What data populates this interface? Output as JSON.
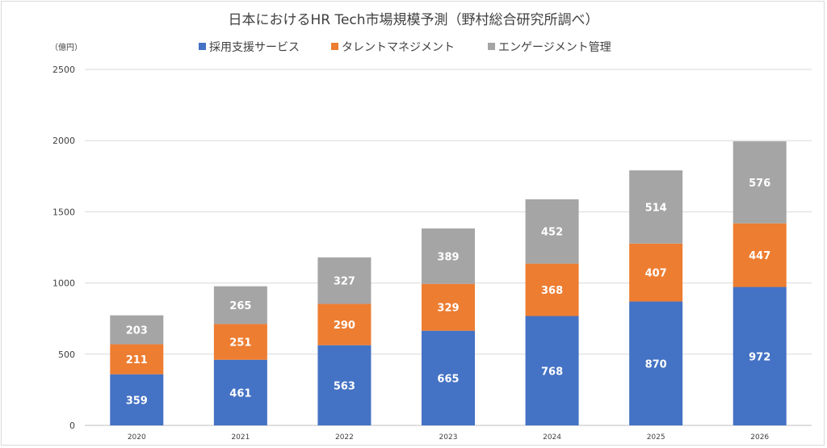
{
  "chart_data": {
    "type": "bar",
    "stacked": true,
    "title": "日本におけるHR Tech市場規模予測（野村総合研究所調べ）",
    "unit_label": "（億円）",
    "categories": [
      "2020",
      "2021",
      "2022",
      "2023",
      "2024",
      "2025",
      "2026"
    ],
    "series": [
      {
        "name": "採用支援サービス",
        "color": "#4472c4",
        "values": [
          359,
          461,
          563,
          665,
          768,
          870,
          972
        ]
      },
      {
        "name": "タレントマネジメント",
        "color": "#ed7d31",
        "values": [
          211,
          251,
          290,
          329,
          368,
          407,
          447
        ]
      },
      {
        "name": "エンゲージメント管理",
        "color": "#a5a5a5",
        "values": [
          203,
          265,
          327,
          389,
          452,
          514,
          576
        ]
      }
    ],
    "ylim": [
      0,
      2500
    ],
    "yticks": [
      0,
      500,
      1000,
      1500,
      2000,
      2500
    ],
    "grid": true,
    "legend_position": "top"
  }
}
